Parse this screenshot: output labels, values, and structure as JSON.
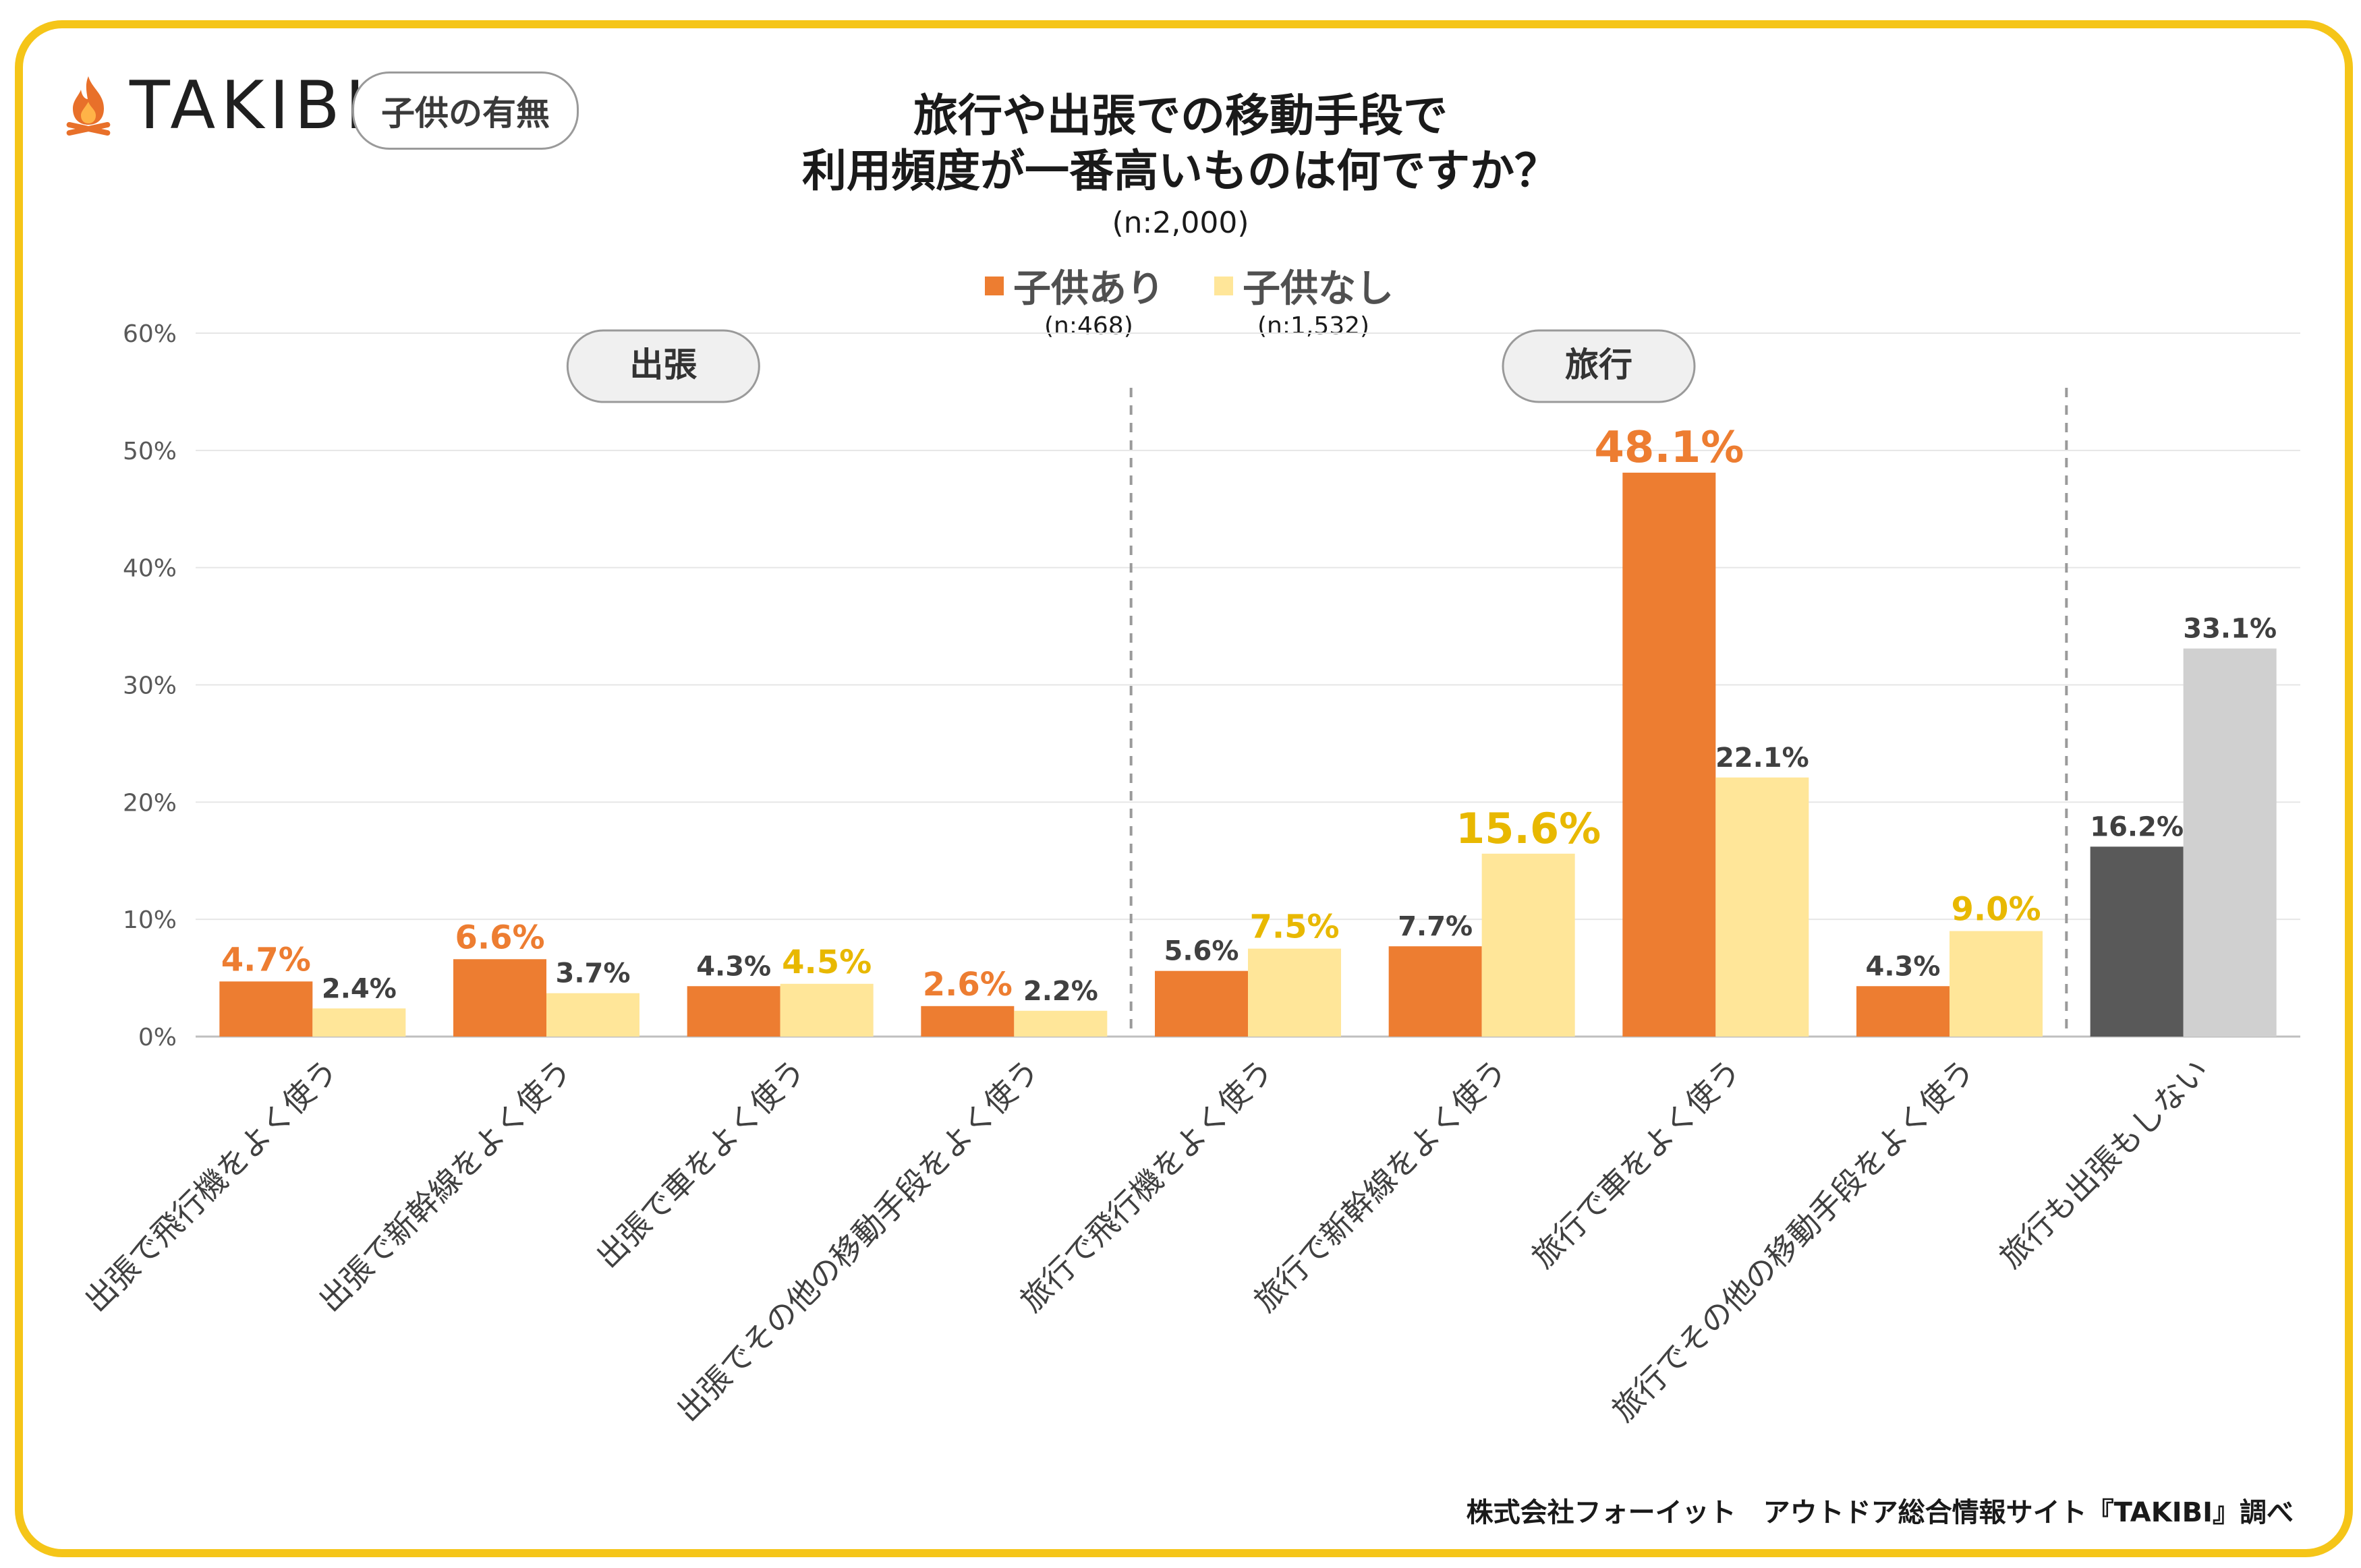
{
  "logo": {
    "text": "TAKIBI",
    "icon": "campfire-icon",
    "color": "#E8702A"
  },
  "badge": {
    "label": "子供の有無"
  },
  "header": {
    "title_line1": "旅行や出張での移動手段で",
    "title_line2": "利用頻度が一番高いものは何ですか？",
    "n_total": "(n:2,000)"
  },
  "legend": {
    "items": [
      {
        "label": "子供あり",
        "n": "(n:468)",
        "color": "#ED7D31"
      },
      {
        "label": "子供なし",
        "n": "(n:1,532)",
        "color": "#FFE699"
      }
    ]
  },
  "groups": {
    "business": "出張",
    "travel": "旅行"
  },
  "footer": {
    "credit": "株式会社フォーイット　アウトドア総合情報サイト『TAKIBI』調べ"
  },
  "colors": {
    "with_kids": "#ED7D31",
    "without_kids": "#FFE699",
    "none_with_kids": "#595959",
    "none_without_kids": "#D0D0D0",
    "highlight_orange": "#ED7D31",
    "highlight_gold": "#E8B800",
    "label_default": "#404040",
    "frame": "#F5C518"
  },
  "chart_data": {
    "type": "bar",
    "title": "旅行や出張での移動手段で利用頻度が一番高いものは何ですか？",
    "xlabel": "",
    "ylabel": "",
    "ylim": [
      0,
      60
    ],
    "yticks": [
      "0%",
      "10%",
      "20%",
      "30%",
      "40%",
      "50%",
      "60%"
    ],
    "ytick_values": [
      0,
      10,
      20,
      30,
      40,
      50,
      60
    ],
    "grid": true,
    "categories": [
      "出張で飛行機をよく使う",
      "出張で新幹線をよく使う",
      "出張で車をよく使う",
      "出張でその他の移動手段をよく使う",
      "旅行で飛行機をよく使う",
      "旅行で新幹線をよく使う",
      "旅行で車をよく使う",
      "旅行でその他の移動手段をよく使う",
      "旅行も出張もしない"
    ],
    "series": [
      {
        "name": "子供あり",
        "values": [
          4.7,
          6.6,
          4.3,
          2.6,
          5.6,
          7.7,
          48.1,
          4.3,
          16.2
        ],
        "labels": [
          "4.7%",
          "6.6%",
          "4.3%",
          "2.6%",
          "5.6%",
          "7.7%",
          "48.1%",
          "4.3%",
          "16.2%"
        ]
      },
      {
        "name": "子供なし",
        "values": [
          2.4,
          3.7,
          4.5,
          2.2,
          7.5,
          15.6,
          22.1,
          9.0,
          33.1
        ],
        "labels": [
          "2.4%",
          "3.7%",
          "4.5%",
          "2.2%",
          "7.5%",
          "15.6%",
          "22.1%",
          "9.0%",
          "33.1%"
        ]
      }
    ],
    "highlighted_labels": {
      "子供あり": [
        0,
        1,
        3,
        6
      ],
      "子供なし": [
        2,
        4,
        5,
        7
      ]
    },
    "big_label": {
      "series": "子供あり",
      "index": 6
    },
    "big_label_2": {
      "series": "子供なし",
      "index": 5
    }
  }
}
